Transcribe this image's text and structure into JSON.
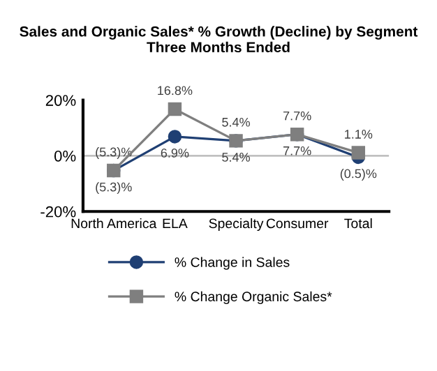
{
  "chart_data": {
    "type": "line",
    "title": "Sales and Organic Sales* % Growth (Decline) by Segment\nThree Months Ended",
    "categories": [
      "North America",
      "ELA",
      "Specialty",
      "Consumer",
      "Total"
    ],
    "series": [
      {
        "name": "% Change in Sales",
        "color": "#1f3f73",
        "marker": "circle",
        "values": [
          -5.3,
          6.9,
          5.4,
          7.7,
          -0.5
        ],
        "value_labels": [
          "(5.3)%",
          "6.9%",
          "5.4%",
          "7.7%",
          "(0.5)%"
        ]
      },
      {
        "name": "% Change Organic Sales*",
        "color": "#7f7f7f",
        "marker": "square",
        "values": [
          -5.3,
          16.8,
          5.4,
          7.7,
          1.1
        ],
        "value_labels": [
          "(5.3)%",
          "16.8%",
          "5.4%",
          "7.7%",
          "1.1%"
        ]
      }
    ],
    "ylim": [
      -20,
      20
    ],
    "yticks": [
      {
        "value": -20,
        "label": "-20%"
      },
      {
        "value": 0,
        "label": "0%"
      },
      {
        "value": 20,
        "label": "20%"
      }
    ],
    "ref_lines": [
      {
        "axis": "y",
        "value": 0,
        "color": "#c0c0c0"
      }
    ],
    "grid": false,
    "legend": "bottom"
  }
}
